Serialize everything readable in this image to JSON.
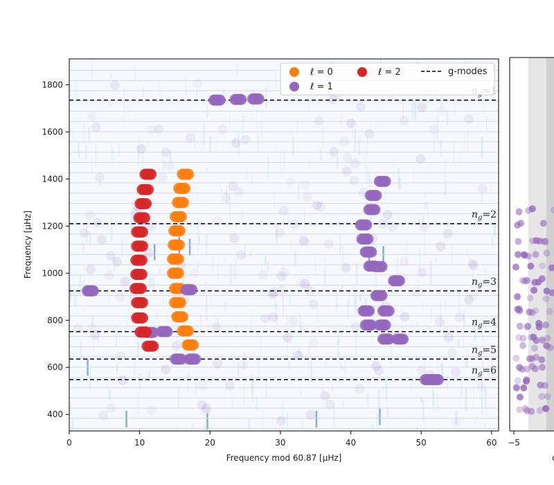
{
  "chart_data": [
    {
      "type": "scatter",
      "title": "",
      "xlabel": "Frequency mod 60.87 [μHz]",
      "ylabel": "Frequency [μHz]",
      "xlim": [
        0,
        61
      ],
      "ylim": [
        330,
        1910
      ],
      "x_ticks": [
        0,
        10,
        20,
        30,
        40,
        50,
        60
      ],
      "x_tick_labels": [
        "0",
        "10",
        "20",
        "30",
        "40",
        "50",
        "60"
      ],
      "y_ticks": [
        400,
        600,
        800,
        1000,
        1200,
        1400,
        1600,
        1800
      ],
      "y_tick_labels": [
        "400",
        "600",
        "800",
        "1000",
        "1200",
        "1400",
        "1600",
        "1800"
      ],
      "background": "blue-scale power spectrum echelle heatmap with horizontal order lines",
      "legend": {
        "placement": "top-right",
        "entries": [
          {
            "label": "ℓ = 0",
            "marker": "circle",
            "color": "#ff7f0e"
          },
          {
            "label": "ℓ = 1",
            "marker": "circle",
            "color": "#9467bd"
          },
          {
            "label": "ℓ = 2",
            "marker": "circle",
            "color": "#d62728"
          },
          {
            "label": "g-modes",
            "marker": "dashed-line",
            "color": "#000000"
          }
        ]
      },
      "gmode_lines": [
        {
          "y": 1735,
          "label": "n_g=1"
        },
        {
          "y": 1210,
          "label": "n_g=2"
        },
        {
          "y": 925,
          "label": "n_g=3"
        },
        {
          "y": 752,
          "label": "n_g=4"
        },
        {
          "y": 635,
          "label": "n_g=5"
        },
        {
          "y": 548,
          "label": "n_g=6"
        }
      ],
      "series": [
        {
          "name": "ℓ = 0",
          "color": "#ff7f0e",
          "points": [
            [
              16.5,
              1420
            ],
            [
              16.0,
              1360
            ],
            [
              15.8,
              1300
            ],
            [
              15.5,
              1240
            ],
            [
              15.3,
              1180
            ],
            [
              15.2,
              1120
            ],
            [
              15.1,
              1060
            ],
            [
              15.1,
              1000
            ],
            [
              15.4,
              935
            ],
            [
              15.4,
              875
            ],
            [
              15.7,
              815
            ],
            [
              16.5,
              755
            ],
            [
              17.2,
              695
            ]
          ]
        },
        {
          "name": "ℓ = 1",
          "color": "#9467bd",
          "points": [
            [
              21.0,
              1735
            ],
            [
              24.0,
              1738
            ],
            [
              26.5,
              1740
            ],
            [
              44.5,
              1390
            ],
            [
              43.2,
              1330
            ],
            [
              43.0,
              1270
            ],
            [
              41.8,
              1205
            ],
            [
              42.0,
              1145
            ],
            [
              42.5,
              1090
            ],
            [
              43.0,
              1030
            ],
            [
              44.0,
              1028
            ],
            [
              46.5,
              968
            ],
            [
              3.0,
              925
            ],
            [
              17.0,
              930
            ],
            [
              44.0,
              905
            ],
            [
              42.2,
              840
            ],
            [
              45.0,
              840
            ],
            [
              42.5,
              780
            ],
            [
              44.5,
              780
            ],
            [
              45.0,
              720
            ],
            [
              47.0,
              720
            ],
            [
              13.5,
              752
            ],
            [
              11.5,
              748
            ],
            [
              17.5,
              635
            ],
            [
              15.5,
              635
            ],
            [
              52.0,
              548
            ],
            [
              51.0,
              548
            ]
          ]
        },
        {
          "name": "ℓ = 2",
          "color": "#d62728",
          "points": [
            [
              11.2,
              1420
            ],
            [
              10.8,
              1355
            ],
            [
              10.5,
              1295
            ],
            [
              10.3,
              1235
            ],
            [
              10.0,
              1175
            ],
            [
              10.0,
              1115
            ],
            [
              9.9,
              1055
            ],
            [
              9.9,
              995
            ],
            [
              9.8,
              935
            ],
            [
              10.0,
              875
            ],
            [
              10.0,
              810
            ],
            [
              10.5,
              750
            ],
            [
              11.5,
              690
            ]
          ]
        }
      ]
    },
    {
      "type": "scatter",
      "title": "",
      "xlabel": "",
      "ylabel": "",
      "x_tick_labels": [
        "−5"
      ],
      "note_visible_text": "c",
      "series": []
    }
  ]
}
